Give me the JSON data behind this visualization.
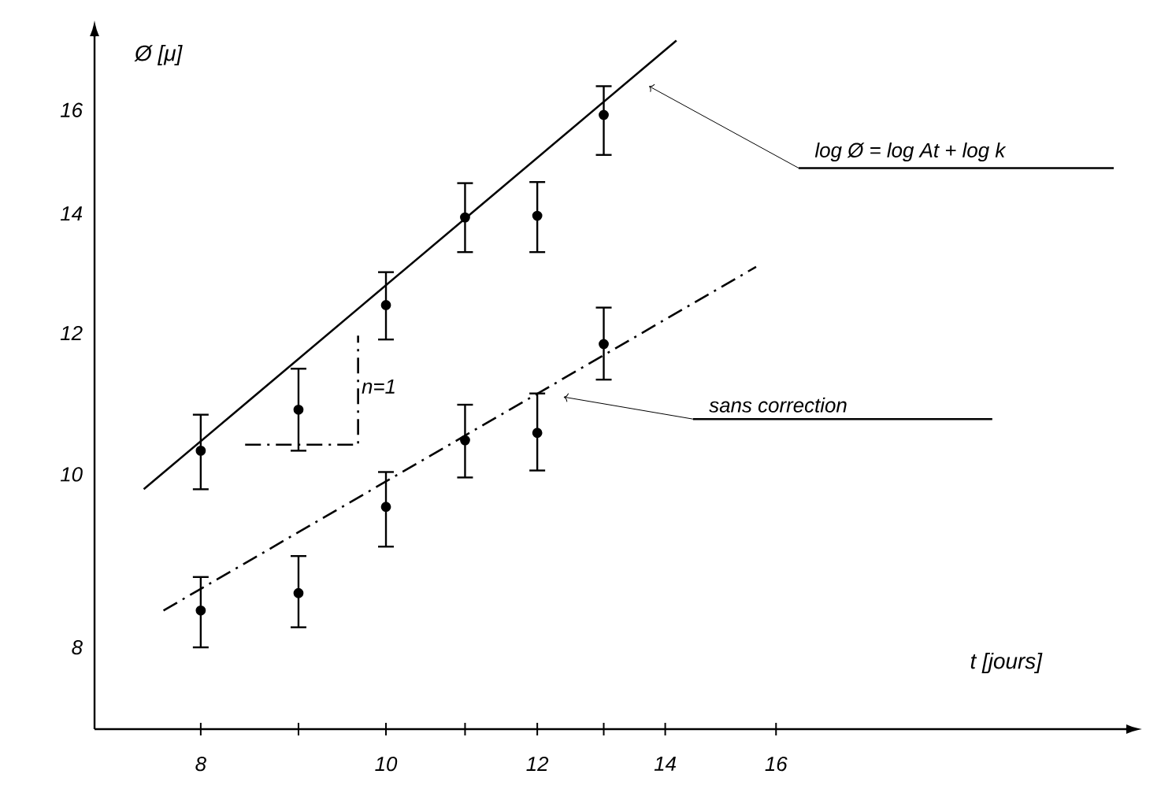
{
  "chart_data": {
    "type": "scatter",
    "xlabel": "t [jours]",
    "ylabel": "Ø [μ]",
    "log": "xy",
    "xlim": [
      7.04,
      24.4
    ],
    "ylim": [
      7.2,
      17.6
    ],
    "xticks": [
      8,
      {
        "value": 9,
        "label": null
      },
      10,
      {
        "value": 11,
        "label": null
      },
      12,
      {
        "value": 13,
        "label": null
      },
      14,
      16
    ],
    "yticks": [
      8,
      10,
      12,
      14,
      16
    ],
    "grid": false,
    "series": [
      {
        "color": "#000000",
        "x": [
          8,
          9,
          10,
          11,
          12,
          13
        ],
        "values": [
          10.31,
          10.87,
          12.44,
          13.93,
          13.96,
          15.9
        ],
        "errors": [
          [
            9.81,
            10.8
          ],
          [
            10.31,
            11.46
          ],
          [
            11.9,
            12.98
          ],
          [
            13.32,
            14.56
          ],
          [
            13.32,
            14.58
          ],
          [
            15.1,
            16.5
          ]
        ]
      },
      {
        "type": "line",
        "color": "#000000",
        "line_style": "solid",
        "x": [
          7.47,
          14.19
        ],
        "values": [
          9.81,
          17.5
        ]
      },
      {
        "color": "#000000",
        "x": [
          8,
          9,
          10,
          11,
          12,
          13
        ],
        "values": [
          8.39,
          8.58,
          9.59,
          10.45,
          10.55,
          11.83
        ],
        "errors": [
          [
            8.0,
            8.76
          ],
          [
            8.21,
            9.0
          ],
          [
            9.11,
            10.03
          ],
          [
            9.96,
            10.94
          ],
          [
            10.05,
            11.1
          ],
          [
            11.3,
            12.4
          ]
        ]
      },
      {
        "type": "line",
        "color": "#000000",
        "line_style": "dashed",
        "x": [
          7.65,
          15.62
        ],
        "values": [
          8.39,
          13.07
        ]
      },
      {
        "type": "line",
        "color": "#000000",
        "line_style": "dashed",
        "x": [
          8.44,
          9.67,
          9.67
        ],
        "values": [
          10.39,
          10.39,
          11.96
        ]
      }
    ],
    "annotations": [
      {
        "text": "log Ø = log At + log k",
        "x": 13.73,
        "y": 16.5
      },
      {
        "text": "sans correction",
        "x": 12.39,
        "y": 11.05
      },
      {
        "text": "n=1",
        "x": 9.67,
        "y": 11.2
      }
    ]
  }
}
